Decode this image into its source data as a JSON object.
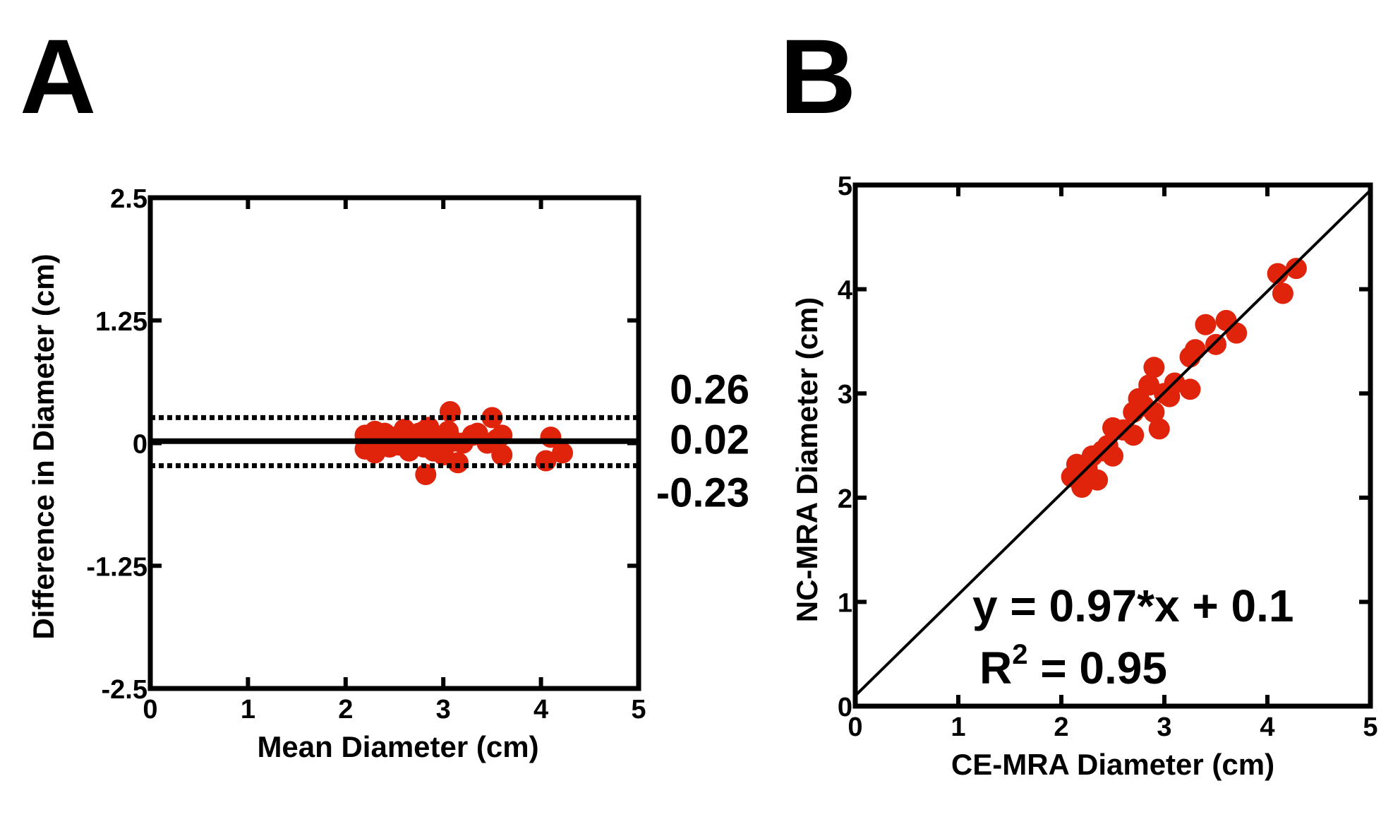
{
  "colors": {
    "point": "#e0230b",
    "axis": "#000000",
    "background": "#ffffff"
  },
  "chart_data": [
    {
      "panel": "A",
      "type": "scatter",
      "title": "",
      "xlabel": "Mean Diameter (cm)",
      "ylabel": "Difference in Diameter (cm)",
      "xlim": [
        0,
        5
      ],
      "ylim": [
        -2.5,
        2.5
      ],
      "xticks": [
        0,
        1,
        2,
        3,
        4,
        5
      ],
      "yticks": [
        -2.5,
        -1.25,
        0,
        1.25,
        2.5
      ],
      "ytick_labels": [
        "-2.5",
        "-1.25",
        "0",
        "1.25",
        "2.5"
      ],
      "reference_lines": [
        {
          "name": "upper-limit",
          "y": 0.26,
          "style": "dotted",
          "label": "0.26"
        },
        {
          "name": "mean-bias",
          "y": 0.02,
          "style": "solid",
          "label": "0.02"
        },
        {
          "name": "lower-limit",
          "y": -0.23,
          "style": "dotted",
          "label": "-0.23"
        }
      ],
      "points": [
        {
          "x": 2.2,
          "y": 0.08
        },
        {
          "x": 2.2,
          "y": -0.06
        },
        {
          "x": 2.25,
          "y": 0.04
        },
        {
          "x": 2.3,
          "y": 0.12
        },
        {
          "x": 2.3,
          "y": -0.1
        },
        {
          "x": 2.35,
          "y": 0.0
        },
        {
          "x": 2.4,
          "y": 0.1
        },
        {
          "x": 2.45,
          "y": -0.04
        },
        {
          "x": 2.5,
          "y": 0.06
        },
        {
          "x": 2.55,
          "y": -0.02
        },
        {
          "x": 2.6,
          "y": 0.14
        },
        {
          "x": 2.65,
          "y": -0.08
        },
        {
          "x": 2.7,
          "y": 0.02
        },
        {
          "x": 2.75,
          "y": 0.1
        },
        {
          "x": 2.8,
          "y": -0.04
        },
        {
          "x": 2.8,
          "y": 0.12
        },
        {
          "x": 2.85,
          "y": 0.16
        },
        {
          "x": 2.82,
          "y": -0.32
        },
        {
          "x": 2.9,
          "y": -0.08
        },
        {
          "x": 2.95,
          "y": 0.04
        },
        {
          "x": 3.0,
          "y": -0.12
        },
        {
          "x": 3.05,
          "y": 0.12
        },
        {
          "x": 3.07,
          "y": 0.32
        },
        {
          "x": 3.1,
          "y": 0.02
        },
        {
          "x": 3.15,
          "y": -0.2
        },
        {
          "x": 3.2,
          "y": 0.0
        },
        {
          "x": 3.3,
          "y": 0.08
        },
        {
          "x": 3.35,
          "y": 0.1
        },
        {
          "x": 3.45,
          "y": 0.0
        },
        {
          "x": 3.5,
          "y": 0.26
        },
        {
          "x": 3.55,
          "y": 0.04
        },
        {
          "x": 3.6,
          "y": 0.08
        },
        {
          "x": 3.6,
          "y": -0.12
        },
        {
          "x": 4.05,
          "y": -0.18
        },
        {
          "x": 4.1,
          "y": 0.06
        },
        {
          "x": 4.22,
          "y": -0.1
        }
      ]
    },
    {
      "panel": "B",
      "type": "scatter",
      "title": "",
      "xlabel": "CE-MRA Diameter (cm)",
      "ylabel": "NC-MRA Diameter (cm)",
      "xlim": [
        0,
        5
      ],
      "ylim": [
        0,
        5
      ],
      "xticks": [
        0,
        1,
        2,
        3,
        4,
        5
      ],
      "yticks": [
        0,
        1,
        2,
        3,
        4,
        5
      ],
      "ytick_labels": [
        "0",
        "1",
        "2",
        "3",
        "4",
        "5"
      ],
      "fit_line": {
        "slope": 0.97,
        "intercept": 0.1,
        "x_range": [
          0,
          5
        ]
      },
      "equation_label": "y = 0.97*x + 0.1",
      "r2_prefix": "R",
      "r2_exponent": "2",
      "r2_value_text": " = 0.95",
      "points": [
        {
          "x": 2.1,
          "y": 2.2
        },
        {
          "x": 2.15,
          "y": 2.32
        },
        {
          "x": 2.2,
          "y": 2.1
        },
        {
          "x": 2.25,
          "y": 2.28
        },
        {
          "x": 2.3,
          "y": 2.4
        },
        {
          "x": 2.35,
          "y": 2.17
        },
        {
          "x": 2.4,
          "y": 2.45
        },
        {
          "x": 2.45,
          "y": 2.5
        },
        {
          "x": 2.5,
          "y": 2.4
        },
        {
          "x": 2.5,
          "y": 2.67
        },
        {
          "x": 2.6,
          "y": 2.65
        },
        {
          "x": 2.7,
          "y": 2.6
        },
        {
          "x": 2.7,
          "y": 2.82
        },
        {
          "x": 2.75,
          "y": 2.95
        },
        {
          "x": 2.8,
          "y": 2.88
        },
        {
          "x": 2.85,
          "y": 3.08
        },
        {
          "x": 2.9,
          "y": 3.25
        },
        {
          "x": 2.9,
          "y": 2.82
        },
        {
          "x": 2.95,
          "y": 2.66
        },
        {
          "x": 3.0,
          "y": 3.0
        },
        {
          "x": 3.05,
          "y": 2.97
        },
        {
          "x": 3.1,
          "y": 3.1
        },
        {
          "x": 3.25,
          "y": 3.04
        },
        {
          "x": 3.25,
          "y": 3.35
        },
        {
          "x": 3.3,
          "y": 3.42
        },
        {
          "x": 3.4,
          "y": 3.66
        },
        {
          "x": 3.5,
          "y": 3.47
        },
        {
          "x": 3.6,
          "y": 3.7
        },
        {
          "x": 3.7,
          "y": 3.58
        },
        {
          "x": 4.1,
          "y": 4.15
        },
        {
          "x": 4.15,
          "y": 3.96
        },
        {
          "x": 4.28,
          "y": 4.2
        }
      ]
    }
  ]
}
